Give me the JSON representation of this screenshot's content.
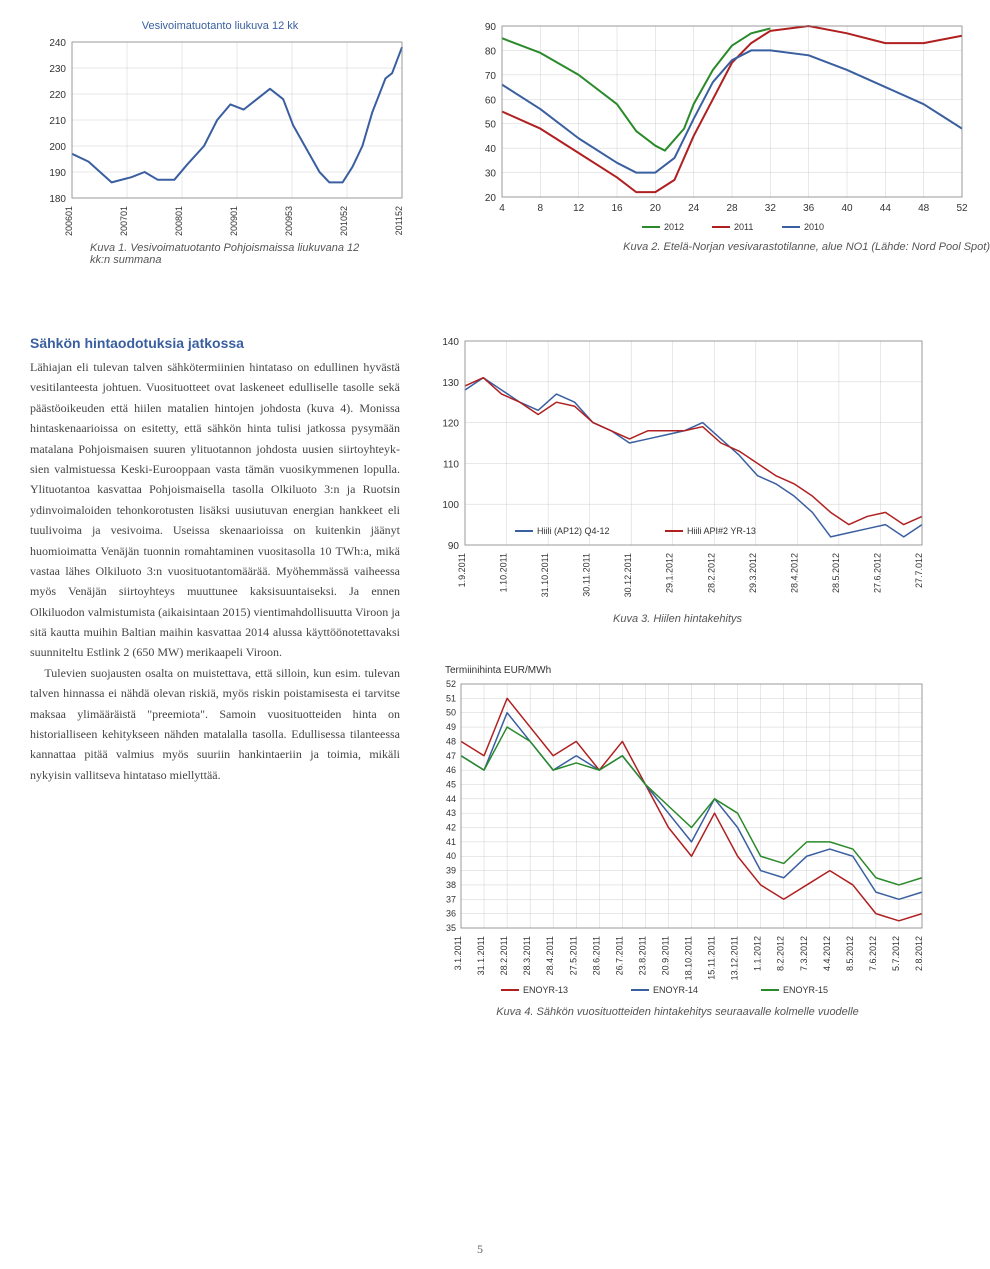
{
  "page_number": "5",
  "chart1": {
    "title": "Vesivoimatuotanto liukuva 12 kk",
    "caption": "Kuva 1. Vesivoimatuotanto Pohjoismaissa liukuvana 12 kk:n summana",
    "type": "line",
    "y_ticks": [
      180,
      190,
      200,
      210,
      220,
      230,
      240
    ],
    "x_labels": [
      "200601",
      "200701",
      "200801",
      "200901",
      "200953",
      "201052",
      "201152"
    ],
    "series": [
      {
        "color": "#3a5fa0",
        "width": 2,
        "points": [
          [
            0,
            197
          ],
          [
            0.05,
            194
          ],
          [
            0.12,
            186
          ],
          [
            0.18,
            188
          ],
          [
            0.22,
            190
          ],
          [
            0.26,
            187
          ],
          [
            0.31,
            187
          ],
          [
            0.35,
            193
          ],
          [
            0.4,
            200
          ],
          [
            0.44,
            210
          ],
          [
            0.48,
            216
          ],
          [
            0.52,
            214
          ],
          [
            0.55,
            217
          ],
          [
            0.6,
            222
          ],
          [
            0.64,
            218
          ],
          [
            0.67,
            208
          ],
          [
            0.71,
            199
          ],
          [
            0.75,
            190
          ],
          [
            0.78,
            186
          ],
          [
            0.82,
            186
          ],
          [
            0.85,
            192
          ],
          [
            0.88,
            200
          ],
          [
            0.91,
            213
          ],
          [
            0.95,
            226
          ],
          [
            0.97,
            228
          ],
          [
            1.0,
            238
          ]
        ]
      }
    ],
    "ylim": [
      180,
      240
    ],
    "background_color": "#ffffff",
    "grid_color": "#d0d0d0"
  },
  "chart2": {
    "title": "",
    "caption": "Kuva 2. Etelä-Norjan vesivarastotilanne, alue NO1 (Lähde: Nord Pool Spot)",
    "type": "line",
    "y_ticks": [
      20,
      30,
      40,
      50,
      60,
      70,
      80,
      90
    ],
    "x_ticks": [
      4,
      8,
      12,
      16,
      20,
      24,
      28,
      32,
      36,
      40,
      44,
      48,
      52
    ],
    "legend": [
      "2012",
      "2011",
      "2010"
    ],
    "legend_colors": [
      "#2a8a2a",
      "#b02020",
      "#3a5fa0"
    ],
    "series": [
      {
        "name": "2012",
        "color": "#2a8a2a",
        "width": 2,
        "points": [
          [
            4,
            85
          ],
          [
            8,
            79
          ],
          [
            12,
            70
          ],
          [
            16,
            58
          ],
          [
            18,
            47
          ],
          [
            20,
            41
          ],
          [
            21,
            39
          ],
          [
            23,
            48
          ],
          [
            24,
            58
          ],
          [
            26,
            72
          ],
          [
            28,
            82
          ],
          [
            30,
            87
          ],
          [
            32,
            89
          ]
        ]
      },
      {
        "name": "2011",
        "color": "#b02020",
        "width": 2,
        "points": [
          [
            4,
            55
          ],
          [
            8,
            48
          ],
          [
            12,
            38
          ],
          [
            16,
            28
          ],
          [
            18,
            22
          ],
          [
            20,
            22
          ],
          [
            22,
            27
          ],
          [
            24,
            45
          ],
          [
            26,
            60
          ],
          [
            28,
            75
          ],
          [
            30,
            83
          ],
          [
            32,
            88
          ],
          [
            36,
            90
          ],
          [
            40,
            87
          ],
          [
            44,
            83
          ],
          [
            48,
            83
          ],
          [
            52,
            86
          ]
        ]
      },
      {
        "name": "2010",
        "color": "#3a5fa0",
        "width": 2,
        "points": [
          [
            4,
            66
          ],
          [
            8,
            56
          ],
          [
            12,
            44
          ],
          [
            16,
            34
          ],
          [
            18,
            30
          ],
          [
            20,
            30
          ],
          [
            22,
            36
          ],
          [
            24,
            52
          ],
          [
            26,
            67
          ],
          [
            28,
            76
          ],
          [
            30,
            80
          ],
          [
            32,
            80
          ],
          [
            36,
            78
          ],
          [
            40,
            72
          ],
          [
            44,
            65
          ],
          [
            48,
            58
          ],
          [
            50,
            53
          ],
          [
            52,
            48
          ]
        ]
      }
    ],
    "ylim": [
      20,
      90
    ],
    "xlim": [
      4,
      52
    ],
    "background_color": "#ffffff",
    "grid_color": "#d0d0d0"
  },
  "text": {
    "heading": "Sähkön hintaodotuksia jatkossa",
    "para1": "Lähiajan eli tulevan talven sähkötermii­nien hintataso on edullinen hyvästä vesi­tilanteesta johtuen. Vuosituotteet ovat laskeneet edulliselle tasolle sekä päästö­oikeuden että hiilen matalien hintojen joh­dosta (kuva 4). Monissa hintaskenaarioissa on esitetty, että sähkön hinta tulisi jatkossa pysymään matalana Pohjoismaisen suuren ylituotannon johdosta uusien siirtoyhteyk­sien valmistuessa Keski-Eurooppaan vasta tämän vuosikymmenen lopulla. Ylituotantoa kasvattaa Pohjoismaisella tasolla Olkiluoto 3:n ja Ruotsin ydinvoimaloiden tehonkoro­tusten lisäksi uusiutuvan energian hankkeet eli tuulivoima ja vesivoima. Useissa skenaa­rioissa on kuitenkin jäänyt huomioimatta Venäjän tuonnin romahtaminen vuositasolla 10 TWh:a, mikä vastaa lähes Olkiluoto 3:n vuosituotantomäärää. Myöhemmässä vai­heessa myös Venäjän siirtoyhteys muuttu­nee kaksisuuntaiseksi. Ja ennen Olkiluodon valmistumista (aikaisintaan 2015) vienti­mahdollisuutta Viroon ja sitä kautta mui­hin Baltian maihin kasvattaa 2014 alussa käyttöönotettavaksi suunniteltu Estlink 2 (650 MW) merikaapeli Viroon.",
    "para2": "Tulevien suojausten osalta on muistet­tava, että silloin, kun esim. tulevan talven hinnassa ei nähdä olevan riskiä, myös ris­kin poistamisesta ei tarvitse maksaa ylimää­räistä \"preemiota\". Samoin vuosituotteiden hinta on historialliseen kehitykseen nähden matalalla tasolla. Edullisessa tilanteessa kannattaa pitää valmius myös suuriin han­kintaeriin ja toimia, mikäli nykyisin vallit­seva hintataso miellyttää."
  },
  "chart3": {
    "caption": "Kuva 3. Hiilen hintakehitys",
    "type": "line",
    "y_ticks": [
      90,
      100,
      110,
      120,
      130,
      140
    ],
    "x_labels": [
      "1.9.2011",
      "1.10.2011",
      "31.10.2011",
      "30.11.2011",
      "30.12.2011",
      "29.1.2012",
      "28.2.2012",
      "29.3.2012",
      "28.4.2012",
      "28.5.2012",
      "27.6.2012",
      "27.7.012"
    ],
    "legend": [
      "Hiili (AP12) Q4-12",
      "Hiili API#2 YR-13"
    ],
    "legend_colors": [
      "#3a5fa0",
      "#b02020"
    ],
    "series": [
      {
        "name": "Hiili (AP12) Q4-12",
        "color": "#3a5fa0",
        "width": 1.5,
        "points": [
          [
            0,
            128
          ],
          [
            0.04,
            131
          ],
          [
            0.08,
            128
          ],
          [
            0.12,
            125
          ],
          [
            0.16,
            123
          ],
          [
            0.2,
            127
          ],
          [
            0.24,
            125
          ],
          [
            0.28,
            120
          ],
          [
            0.32,
            118
          ],
          [
            0.36,
            115
          ],
          [
            0.4,
            116
          ],
          [
            0.44,
            117
          ],
          [
            0.48,
            118
          ],
          [
            0.52,
            120
          ],
          [
            0.56,
            116
          ],
          [
            0.6,
            112
          ],
          [
            0.64,
            107
          ],
          [
            0.68,
            105
          ],
          [
            0.72,
            102
          ],
          [
            0.76,
            98
          ],
          [
            0.8,
            92
          ],
          [
            0.84,
            93
          ],
          [
            0.88,
            94
          ],
          [
            0.92,
            95
          ],
          [
            0.96,
            92
          ],
          [
            1.0,
            95
          ]
        ]
      },
      {
        "name": "Hiili API#2 YR-13",
        "color": "#b02020",
        "width": 1.5,
        "points": [
          [
            0,
            129
          ],
          [
            0.04,
            131
          ],
          [
            0.08,
            127
          ],
          [
            0.12,
            125
          ],
          [
            0.16,
            122
          ],
          [
            0.2,
            125
          ],
          [
            0.24,
            124
          ],
          [
            0.28,
            120
          ],
          [
            0.32,
            118
          ],
          [
            0.36,
            116
          ],
          [
            0.4,
            118
          ],
          [
            0.44,
            118
          ],
          [
            0.48,
            118
          ],
          [
            0.52,
            119
          ],
          [
            0.56,
            115
          ],
          [
            0.6,
            113
          ],
          [
            0.64,
            110
          ],
          [
            0.68,
            107
          ],
          [
            0.72,
            105
          ],
          [
            0.76,
            102
          ],
          [
            0.8,
            98
          ],
          [
            0.84,
            95
          ],
          [
            0.88,
            97
          ],
          [
            0.92,
            98
          ],
          [
            0.96,
            95
          ],
          [
            1.0,
            97
          ]
        ]
      }
    ],
    "ylim": [
      90,
      140
    ]
  },
  "chart4": {
    "caption": "Kuva 4. Sähkön vuosituotteiden hintakehitys seuraavalle kolmelle vuodelle",
    "y_axis_title": "Termiinihinta EUR/MWh",
    "type": "line",
    "y_ticks": [
      35,
      36,
      37,
      38,
      39,
      40,
      41,
      42,
      43,
      44,
      45,
      46,
      47,
      48,
      49,
      50,
      51,
      52
    ],
    "x_labels": [
      "3.1.2011",
      "31.1.2011",
      "28.2.2011",
      "28.3.2011",
      "28.4.2011",
      "27.5.2011",
      "28.6.2011",
      "26.7.2011",
      "23.8.2011",
      "20.9.2011",
      "18.10.2011",
      "15.11.2011",
      "13.12.2011",
      "1.1.2012",
      "8.2.2012",
      "7.3.2012",
      "4.4.2012",
      "8.5.2012",
      "7.6.2012",
      "5.7.2012",
      "2.8.2012"
    ],
    "legend": [
      "ENOYR-13",
      "ENOYR-14",
      "ENOYR-15"
    ],
    "legend_colors": [
      "#b02020",
      "#3a5fa0",
      "#2a8a2a"
    ],
    "series": [
      {
        "name": "ENOYR-13",
        "color": "#b02020",
        "width": 1.5,
        "points": [
          [
            0,
            48
          ],
          [
            0.05,
            47
          ],
          [
            0.1,
            51
          ],
          [
            0.15,
            49
          ],
          [
            0.2,
            47
          ],
          [
            0.25,
            48
          ],
          [
            0.3,
            46
          ],
          [
            0.35,
            48
          ],
          [
            0.4,
            45
          ],
          [
            0.45,
            42
          ],
          [
            0.5,
            40
          ],
          [
            0.55,
            43
          ],
          [
            0.6,
            40
          ],
          [
            0.65,
            38
          ],
          [
            0.7,
            37
          ],
          [
            0.75,
            38
          ],
          [
            0.8,
            39
          ],
          [
            0.85,
            38
          ],
          [
            0.9,
            36
          ],
          [
            0.95,
            35.5
          ],
          [
            1.0,
            36
          ]
        ]
      },
      {
        "name": "ENOYR-14",
        "color": "#3a5fa0",
        "width": 1.5,
        "points": [
          [
            0,
            47
          ],
          [
            0.05,
            46
          ],
          [
            0.1,
            50
          ],
          [
            0.15,
            48
          ],
          [
            0.2,
            46
          ],
          [
            0.25,
            47
          ],
          [
            0.3,
            46
          ],
          [
            0.35,
            47
          ],
          [
            0.4,
            45
          ],
          [
            0.45,
            43
          ],
          [
            0.5,
            41
          ],
          [
            0.55,
            44
          ],
          [
            0.6,
            42
          ],
          [
            0.65,
            39
          ],
          [
            0.7,
            38.5
          ],
          [
            0.75,
            40
          ],
          [
            0.8,
            40.5
          ],
          [
            0.85,
            40
          ],
          [
            0.9,
            37.5
          ],
          [
            0.95,
            37
          ],
          [
            1.0,
            37.5
          ]
        ]
      },
      {
        "name": "ENOYR-15",
        "color": "#2a8a2a",
        "width": 1.5,
        "points": [
          [
            0,
            47
          ],
          [
            0.05,
            46
          ],
          [
            0.1,
            49
          ],
          [
            0.15,
            48
          ],
          [
            0.2,
            46
          ],
          [
            0.25,
            46.5
          ],
          [
            0.3,
            46
          ],
          [
            0.35,
            47
          ],
          [
            0.4,
            45
          ],
          [
            0.45,
            43.5
          ],
          [
            0.5,
            42
          ],
          [
            0.55,
            44
          ],
          [
            0.6,
            43
          ],
          [
            0.65,
            40
          ],
          [
            0.7,
            39.5
          ],
          [
            0.75,
            41
          ],
          [
            0.8,
            41
          ],
          [
            0.85,
            40.5
          ],
          [
            0.9,
            38.5
          ],
          [
            0.95,
            38
          ],
          [
            1.0,
            38.5
          ]
        ]
      }
    ],
    "ylim": [
      35,
      52
    ]
  }
}
